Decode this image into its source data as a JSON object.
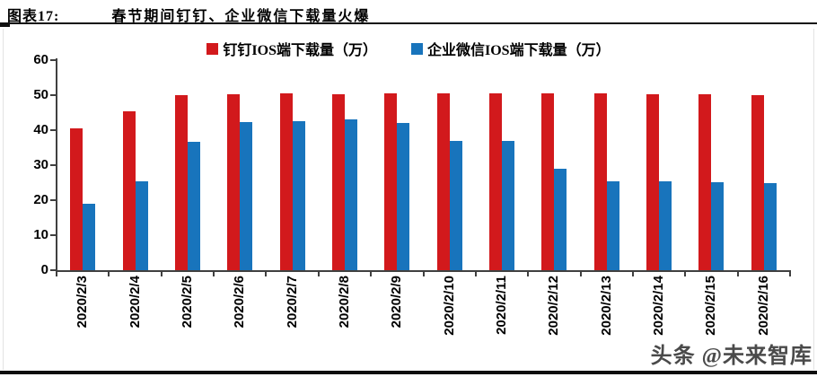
{
  "header": {
    "figure_label": "图表17:",
    "title": "春节期间钉钉、企业微信下载量火爆"
  },
  "watermark": {
    "text": "头条 @未来智库"
  },
  "colors": {
    "dingtalk_red": "#d2191c",
    "wecom_blue": "#1874bc",
    "axis": "#404040"
  },
  "chart_data": {
    "type": "bar",
    "title": "春节期间钉钉、企业微信下载量火爆",
    "xlabel": "",
    "ylabel": "",
    "ylim": [
      0,
      60
    ],
    "yticks": [
      0,
      10,
      20,
      30,
      40,
      50,
      60
    ],
    "grid": false,
    "legend_position": "top",
    "categories": [
      "2020/2/3",
      "2020/2/4",
      "2020/2/5",
      "2020/2/6",
      "2020/2/7",
      "2020/2/8",
      "2020/2/9",
      "2020/2/10",
      "2020/2/11",
      "2020/2/12",
      "2020/2/13",
      "2020/2/14",
      "2020/2/15",
      "2020/2/16"
    ],
    "series": [
      {
        "name": "钉钉IOS端下载量（万）",
        "color": "#d2191c",
        "values": [
          40.6,
          45.3,
          49.9,
          50.3,
          50.4,
          50.3,
          50.6,
          50.5,
          50.5,
          50.6,
          50.5,
          50.3,
          50.3,
          50.1
        ]
      },
      {
        "name": "企业微信IOS端下载量（万）",
        "color": "#1874bc",
        "values": [
          18.9,
          25.3,
          36.7,
          42.2,
          42.6,
          43.0,
          42.0,
          37.0,
          36.8,
          29.1,
          25.5,
          25.5,
          25.1,
          24.9
        ]
      }
    ]
  }
}
